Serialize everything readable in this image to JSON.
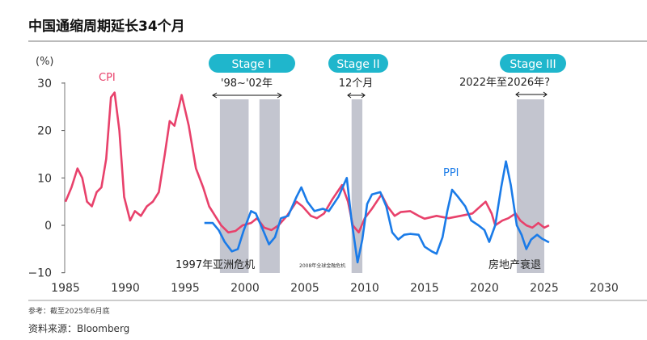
{
  "title": "中国通缩周期延长34个月",
  "footer": {
    "note": "参考：截至2025年6月底",
    "source": "资料来源：Bloomberg"
  },
  "colors": {
    "cpi": "#e8416b",
    "ppi": "#1a7be8",
    "band": "#c3c5cf",
    "pill": "#1fb6cc"
  },
  "chart_data": {
    "type": "line",
    "ylabel": "(%)",
    "xlim": [
      1985,
      2030
    ],
    "ylim": [
      -10,
      30
    ],
    "x_ticks": [
      "1985",
      "1990",
      "1995",
      "2000",
      "2005",
      "2010",
      "2015",
      "2020",
      "2025",
      "2030"
    ],
    "y_ticks": [
      "30",
      "20",
      "10",
      "0",
      "−10"
    ],
    "grid": false,
    "series": [
      {
        "name": "CPI",
        "points": [
          [
            1985,
            5
          ],
          [
            1985.5,
            8
          ],
          [
            1986,
            12
          ],
          [
            1986.4,
            10
          ],
          [
            1986.8,
            5
          ],
          [
            1987.2,
            4
          ],
          [
            1987.6,
            7
          ],
          [
            1988,
            8
          ],
          [
            1988.4,
            14
          ],
          [
            1988.8,
            27
          ],
          [
            1989.1,
            28
          ],
          [
            1989.5,
            20
          ],
          [
            1989.9,
            6
          ],
          [
            1990.4,
            1
          ],
          [
            1990.8,
            3
          ],
          [
            1991.3,
            2
          ],
          [
            1991.8,
            4
          ],
          [
            1992.3,
            5
          ],
          [
            1992.8,
            7
          ],
          [
            1993.3,
            15
          ],
          [
            1993.7,
            22
          ],
          [
            1994.1,
            21
          ],
          [
            1994.7,
            27.5
          ],
          [
            1995.3,
            21
          ],
          [
            1995.9,
            12
          ],
          [
            1996.5,
            8
          ],
          [
            1997,
            4
          ],
          [
            1997.5,
            2
          ],
          [
            1998,
            0
          ],
          [
            1998.6,
            -1.5
          ],
          [
            1999.2,
            -1.2
          ],
          [
            1999.8,
            0
          ],
          [
            2000.5,
            0.5
          ],
          [
            2001,
            1.5
          ],
          [
            2001.6,
            -0.5
          ],
          [
            2002.2,
            -1
          ],
          [
            2002.8,
            0
          ],
          [
            2003.5,
            2
          ],
          [
            2004.3,
            5
          ],
          [
            2004.8,
            4
          ],
          [
            2005.5,
            2
          ],
          [
            2006,
            1.5
          ],
          [
            2006.6,
            2.5
          ],
          [
            2007.3,
            5.5
          ],
          [
            2008.1,
            8.5
          ],
          [
            2008.6,
            5
          ],
          [
            2009,
            0
          ],
          [
            2009.5,
            -1.5
          ],
          [
            2010,
            1.5
          ],
          [
            2010.6,
            3.5
          ],
          [
            2011.4,
            6.5
          ],
          [
            2011.9,
            4
          ],
          [
            2012.5,
            2
          ],
          [
            2013,
            2.8
          ],
          [
            2013.8,
            3
          ],
          [
            2014.5,
            2
          ],
          [
            2015,
            1.4
          ],
          [
            2016,
            2
          ],
          [
            2017,
            1.5
          ],
          [
            2018,
            2
          ],
          [
            2019,
            2.5
          ],
          [
            2020.1,
            5
          ],
          [
            2020.6,
            2.5
          ],
          [
            2020.9,
            0
          ],
          [
            2021.5,
            1
          ],
          [
            2022,
            1.5
          ],
          [
            2022.6,
            2.5
          ],
          [
            2023,
            1
          ],
          [
            2023.5,
            0
          ],
          [
            2024,
            -0.5
          ],
          [
            2024.5,
            0.5
          ],
          [
            2025,
            -0.5
          ],
          [
            2025.4,
            0
          ]
        ]
      },
      {
        "name": "PPI",
        "points": [
          [
            1996.6,
            0.5
          ],
          [
            1997.3,
            0.5
          ],
          [
            1997.8,
            -1
          ],
          [
            1998.3,
            -3.5
          ],
          [
            1998.9,
            -5.5
          ],
          [
            1999.4,
            -5
          ],
          [
            1999.9,
            -1
          ],
          [
            2000.5,
            3
          ],
          [
            2000.9,
            2.5
          ],
          [
            2001.5,
            -1
          ],
          [
            2002,
            -4
          ],
          [
            2002.5,
            -2.5
          ],
          [
            2003,
            1.5
          ],
          [
            2003.6,
            2
          ],
          [
            2004.3,
            6
          ],
          [
            2004.7,
            8
          ],
          [
            2005.2,
            5
          ],
          [
            2005.8,
            3
          ],
          [
            2006.5,
            3.5
          ],
          [
            2007,
            3
          ],
          [
            2007.8,
            6
          ],
          [
            2008.5,
            10
          ],
          [
            2008.9,
            1
          ],
          [
            2009.4,
            -7.8
          ],
          [
            2009.8,
            -3
          ],
          [
            2010.2,
            4.5
          ],
          [
            2010.6,
            6.5
          ],
          [
            2011.3,
            7
          ],
          [
            2011.8,
            4
          ],
          [
            2012.3,
            -1.5
          ],
          [
            2012.8,
            -3
          ],
          [
            2013.3,
            -2
          ],
          [
            2013.8,
            -1.8
          ],
          [
            2014.5,
            -2
          ],
          [
            2015,
            -4.5
          ],
          [
            2015.6,
            -5.5
          ],
          [
            2016,
            -6
          ],
          [
            2016.5,
            -2.5
          ],
          [
            2016.9,
            3
          ],
          [
            2017.3,
            7.5
          ],
          [
            2017.8,
            6
          ],
          [
            2018.4,
            4
          ],
          [
            2018.9,
            1
          ],
          [
            2019.5,
            0
          ],
          [
            2020,
            -1
          ],
          [
            2020.4,
            -3.5
          ],
          [
            2020.9,
            0
          ],
          [
            2021.4,
            8
          ],
          [
            2021.8,
            13.5
          ],
          [
            2022.2,
            8.5
          ],
          [
            2022.7,
            0
          ],
          [
            2023.1,
            -2
          ],
          [
            2023.5,
            -5
          ],
          [
            2023.9,
            -3
          ],
          [
            2024.4,
            -2
          ],
          [
            2024.8,
            -2.8
          ],
          [
            2025.4,
            -3.6
          ]
        ]
      }
    ],
    "shaded_periods": [
      [
        1997.9,
        2000.3
      ],
      [
        2001.2,
        2002.9
      ],
      [
        2008.9,
        2009.8
      ],
      [
        2022.7,
        2025.0
      ]
    ],
    "annotations": {
      "cpi_label": "CPI",
      "ppi_label": "PPI",
      "stages": [
        {
          "label": "Stage I",
          "span": "'98~'02年"
        },
        {
          "label": "Stage II",
          "span": "12个月"
        },
        {
          "label": "Stage III",
          "span": "2022年至2026年?"
        }
      ],
      "events": [
        "1997年亚洲危机",
        "2008年全球金融危机",
        "房地产衰退"
      ]
    }
  }
}
